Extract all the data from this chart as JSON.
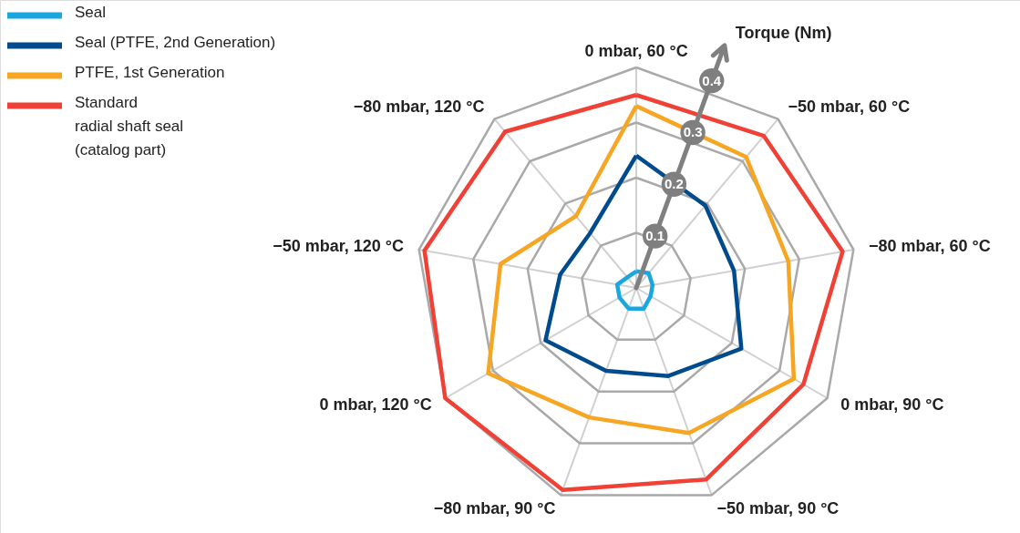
{
  "chart_data": {
    "type": "radar",
    "ylabel": "Torque (Nm)",
    "categories": [
      "0 mbar, 60 °C",
      "−50 mbar, 60 °C",
      "−80 mbar, 60 °C",
      "0 mbar, 90 °C",
      "−50 mbar, 90 °C",
      "−80 mbar, 90 °C",
      "0 mbar, 120 °C",
      "−50 mbar, 120 °C",
      "−80 mbar, 120 °C"
    ],
    "series": [
      {
        "name": "Seal",
        "color": "#1aa7e0",
        "values": [
          0.03,
          0.035,
          0.03,
          0.03,
          0.04,
          0.04,
          0.035,
          0.035,
          0.025
        ]
      },
      {
        "name": "Seal (PTFE, 2nd Generation)",
        "color": "#004b8d",
        "values": [
          0.24,
          0.195,
          0.18,
          0.22,
          0.17,
          0.16,
          0.19,
          0.14,
          0.13
        ]
      },
      {
        "name": "PTFE, 1st Generation",
        "color": "#f6a623",
        "values": [
          0.33,
          0.31,
          0.28,
          0.33,
          0.28,
          0.25,
          0.31,
          0.25,
          0.17
        ]
      },
      {
        "name": "Standard\nradial shaft seal\n(catalog part)",
        "color": "#ef4135",
        "values": [
          0.35,
          0.36,
          0.38,
          0.35,
          0.37,
          0.39,
          0.4,
          0.39,
          0.37
        ]
      }
    ],
    "ylim": [
      0,
      0.4
    ],
    "yticks": [
      0.1,
      0.2,
      0.3,
      0.4
    ],
    "grid": true,
    "legend": "top left"
  }
}
